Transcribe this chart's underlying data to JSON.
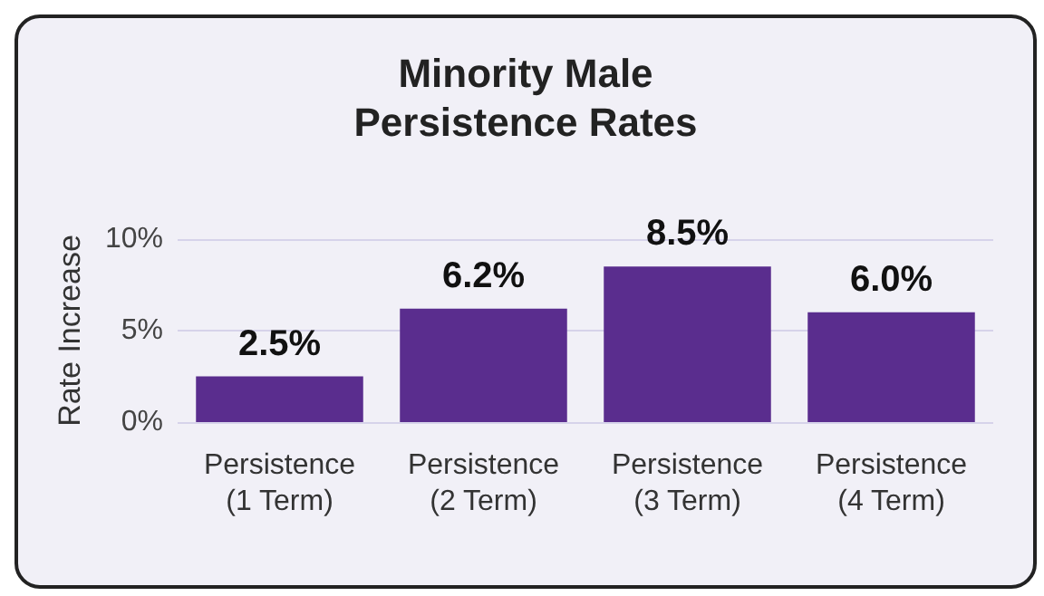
{
  "chart_data": {
    "type": "bar",
    "title": "Minority Male\nPersistence Rates",
    "ylabel": "Rate Increase",
    "categories": [
      "Persistence\n(1 Term)",
      "Persistence\n(2 Term)",
      "Persistence\n(3 Term)",
      "Persistence\n(4 Term)"
    ],
    "values": [
      2.5,
      6.2,
      8.5,
      6.0
    ],
    "color": "#5a2d8e",
    "value_labels": [
      "2.5%",
      "6.2%",
      "8.5%",
      "6.0%"
    ],
    "ylim": [
      0,
      10
    ],
    "yticks": [
      {
        "value": 0,
        "label": "0%"
      },
      {
        "value": 5,
        "label": "5%"
      },
      {
        "value": 10,
        "label": "10%"
      }
    ],
    "grid": "y"
  }
}
